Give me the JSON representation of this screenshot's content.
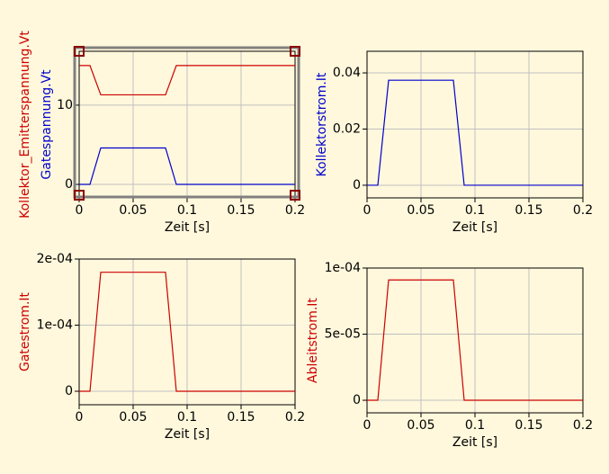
{
  "chart_data": [
    {
      "type": "line",
      "xlabel": "Zeit [s]",
      "x": [
        0,
        0.01,
        0.02,
        0.08,
        0.09,
        0.2
      ],
      "series": [
        {
          "name": "Kollektor_Emitterspannung.Vt",
          "color": "#cc0000",
          "values": [
            15,
            15,
            11.3,
            11.3,
            15,
            15
          ]
        },
        {
          "name": "Gatespannung.Vt",
          "color": "#0000cc",
          "values": [
            0,
            0,
            4.6,
            4.6,
            0,
            0
          ]
        }
      ],
      "xlim": [
        0,
        0.2
      ],
      "ylim": [
        -1.7,
        16.8
      ],
      "xticks": [
        0,
        0.05,
        0.1,
        0.15,
        0.2
      ],
      "yticks": [
        0,
        10
      ],
      "grid": true
    },
    {
      "type": "line",
      "xlabel": "Zeit [s]",
      "x": [
        0,
        0.01,
        0.02,
        0.08,
        0.09,
        0.2
      ],
      "series": [
        {
          "name": "Kollektorstrom.It",
          "color": "#0000cc",
          "values": [
            0,
            0,
            0.0374,
            0.0374,
            0,
            0
          ]
        }
      ],
      "xlim": [
        0,
        0.2
      ],
      "ylim": [
        -0.0045,
        0.0477
      ],
      "xticks": [
        0,
        0.05,
        0.1,
        0.15,
        0.2
      ],
      "yticks": [
        0,
        0.02,
        0.04
      ],
      "grid": true
    },
    {
      "type": "line",
      "xlabel": "Zeit [s]",
      "x": [
        0,
        0.01,
        0.02,
        0.08,
        0.09,
        0.2
      ],
      "series": [
        {
          "name": "Gatestrom.It",
          "color": "#cc0000",
          "values": [
            0,
            0,
            0.00018,
            0.00018,
            0,
            0
          ]
        }
      ],
      "xlim": [
        0,
        0.2
      ],
      "ylim": [
        -2.04e-05,
        0.0002
      ],
      "xticks": [
        0,
        0.05,
        0.1,
        0.15,
        0.2
      ],
      "yticks": [
        0,
        {
          "value": 0.0001,
          "label": "1e-04"
        },
        {
          "value": 0.0002,
          "label": "2e-04"
        }
      ],
      "grid": true
    },
    {
      "type": "line",
      "xlabel": "Zeit [s]",
      "x": [
        0,
        0.01,
        0.02,
        0.08,
        0.09,
        0.2
      ],
      "series": [
        {
          "name": "Ableitstrom.It",
          "color": "#cc0000",
          "values": [
            0,
            0,
            9.1e-05,
            9.1e-05,
            0,
            0
          ]
        }
      ],
      "xlim": [
        0,
        0.2
      ],
      "ylim": [
        -9.5e-06,
        0.0001
      ],
      "xticks": [
        0,
        0.05,
        0.1,
        0.15,
        0.2
      ],
      "yticks": [
        0,
        {
          "value": 5e-05,
          "label": "5e-05"
        },
        {
          "value": 0.0001,
          "label": "1e-04"
        }
      ],
      "grid": true
    }
  ]
}
